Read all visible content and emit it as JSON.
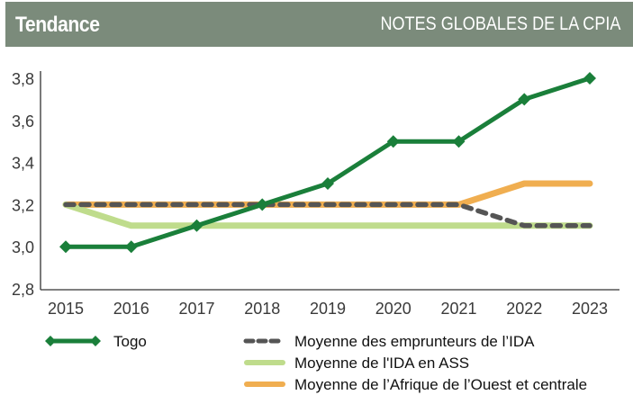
{
  "header": {
    "title": "Tendance",
    "subtitle": "NOTES GLOBALES DE LA CPIA"
  },
  "chart_data": {
    "type": "line",
    "title": "NOTES GLOBALES DE LA CPIA",
    "xlabel": "",
    "ylabel": "",
    "ylim": [
      2.8,
      3.8
    ],
    "yticks": [
      "2,8",
      "3,0",
      "3,2",
      "3,4",
      "3,6",
      "3,8"
    ],
    "ytick_values": [
      2.8,
      3.0,
      3.2,
      3.4,
      3.6,
      3.8
    ],
    "categories": [
      "2015",
      "2016",
      "2017",
      "2018",
      "2019",
      "2020",
      "2021",
      "2022",
      "2023"
    ],
    "grid": false,
    "legend_position": "bottom",
    "series": [
      {
        "name": "Moyenne de l’Afrique de l’Ouest et centrale",
        "color": "#f0ae50",
        "style": "solid",
        "values": [
          3.2,
          3.2,
          3.2,
          3.2,
          3.2,
          3.2,
          3.2,
          3.3,
          3.3
        ]
      },
      {
        "name": "Moyenne de l'IDA en ASS",
        "color": "#bfdc8c",
        "style": "solid",
        "values": [
          3.2,
          3.1,
          3.1,
          3.1,
          3.1,
          3.1,
          3.1,
          3.1,
          3.1
        ]
      },
      {
        "name": "Moyenne des emprunteurs de l’IDA",
        "color": "#555555",
        "style": "dashed",
        "values": [
          3.2,
          3.2,
          3.2,
          3.2,
          3.2,
          3.2,
          3.2,
          3.1,
          3.1
        ]
      },
      {
        "name": "Togo",
        "color": "#1a7f3a",
        "style": "solid-diamond",
        "values": [
          3.0,
          3.0,
          3.1,
          3.2,
          3.3,
          3.5,
          3.5,
          3.7,
          3.8
        ]
      }
    ]
  },
  "legend": {
    "togo": "Togo",
    "ida_borrowers": "Moyenne des emprunteurs de l’IDA",
    "ida_ssa": "Moyenne de l'IDA en ASS",
    "west_central": "Moyenne de l’Afrique de l’Ouest et centrale"
  }
}
